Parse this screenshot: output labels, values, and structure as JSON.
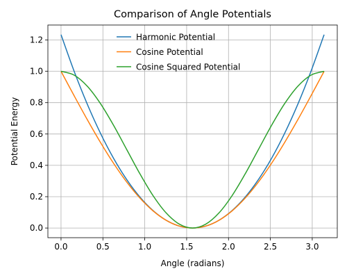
{
  "chart_data": {
    "type": "line",
    "title": "Comparison of Angle Potentials",
    "xlabel": "Angle (radians)",
    "ylabel": "Potential Energy",
    "xlim": [
      -0.157,
      3.299
    ],
    "ylim": [
      -0.0617,
      1.2954
    ],
    "xticks": [
      0.0,
      0.5,
      1.0,
      1.5,
      2.0,
      2.5,
      3.0
    ],
    "xtick_labels": [
      "0.0",
      "0.5",
      "1.0",
      "1.5",
      "2.0",
      "2.5",
      "3.0"
    ],
    "yticks": [
      0.0,
      0.2,
      0.4,
      0.6,
      0.8,
      1.0,
      1.2
    ],
    "ytick_labels": [
      "0.0",
      "0.2",
      "0.4",
      "0.6",
      "0.8",
      "1.0",
      "1.2"
    ],
    "grid": true,
    "legend_position": "upper-center",
    "x": [
      0.0,
      0.1571,
      0.3142,
      0.4712,
      0.6283,
      0.7854,
      0.9425,
      1.0996,
      1.2566,
      1.4137,
      1.5708,
      1.7279,
      1.885,
      2.042,
      2.1991,
      2.3562,
      2.5133,
      2.6704,
      2.8274,
      2.9845,
      3.1416
    ],
    "series": [
      {
        "name": "Harmonic Potential",
        "color": "#1f77b4",
        "values": [
          1.2337,
          0.9993,
          0.7896,
          0.6045,
          0.4441,
          0.3084,
          0.1974,
          0.111,
          0.0493,
          0.0123,
          0.0,
          0.0123,
          0.0493,
          0.111,
          0.1974,
          0.3084,
          0.4441,
          0.6045,
          0.7896,
          0.9993,
          1.2337
        ]
      },
      {
        "name": "Cosine Potential",
        "color": "#ff7f0e",
        "values": [
          1.0,
          0.8436,
          0.691,
          0.546,
          0.4122,
          0.2929,
          0.191,
          0.109,
          0.0489,
          0.0123,
          0.0,
          0.0123,
          0.0489,
          0.109,
          0.191,
          0.2929,
          0.4122,
          0.546,
          0.691,
          0.8436,
          1.0
        ]
      },
      {
        "name": "Cosine Squared Potential",
        "color": "#2ca02c",
        "values": [
          1.0,
          0.9755,
          0.9045,
          0.7939,
          0.6545,
          0.5,
          0.3455,
          0.2061,
          0.0955,
          0.0245,
          0.0,
          0.0245,
          0.0955,
          0.2061,
          0.3455,
          0.5,
          0.6545,
          0.7939,
          0.9045,
          0.9755,
          1.0
        ]
      }
    ]
  }
}
